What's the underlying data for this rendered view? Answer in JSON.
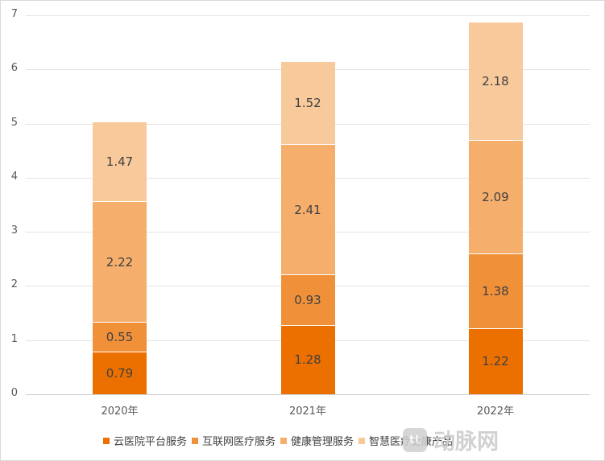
{
  "chart_data": {
    "type": "bar",
    "stacked": true,
    "title": "",
    "xlabel": "",
    "ylabel": "",
    "categories": [
      "2020年",
      "2021年",
      "2022年"
    ],
    "series": [
      {
        "name": "云医院平台服务",
        "color": "#EC7000",
        "values": [
          0.79,
          1.28,
          1.22
        ]
      },
      {
        "name": "互联网医疗服务",
        "color": "#F0913A",
        "values": [
          0.55,
          0.93,
          1.38
        ]
      },
      {
        "name": "健康管理服务",
        "color": "#F5AE6C",
        "values": [
          2.22,
          2.41,
          2.09
        ]
      },
      {
        "name": "智慧医疗健康产品",
        "color": "#F8C99A",
        "values": [
          1.47,
          1.52,
          2.18
        ]
      }
    ],
    "ylim": [
      0,
      7
    ],
    "yticks": [
      "0",
      "1",
      "2",
      "3",
      "4",
      "5",
      "6",
      "7"
    ],
    "grid": true,
    "data_labels": true,
    "legend_position": "bottom"
  },
  "watermark": {
    "text": "动脉网",
    "logo": "tt"
  }
}
